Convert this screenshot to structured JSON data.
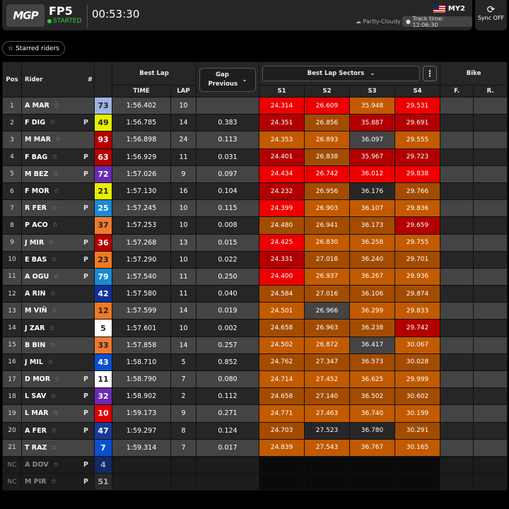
{
  "header": {
    "logo": "MGP",
    "session": "FP5",
    "status": "STARTED",
    "clock": "00:53:30",
    "circuit": "MY2",
    "weather": "Partly-Cloudy",
    "track_time": "Track time: 12:06:30",
    "sync": "Sync OFF"
  },
  "filters": {
    "starred": "Starred riders"
  },
  "table": {
    "headers": {
      "pos": "Pos",
      "rider": "Rider",
      "num": "#",
      "best_lap": "Best Lap",
      "time": "TIME",
      "lap": "LAP",
      "gap": "Gap Previous",
      "sectors": "Best Lap Sectors",
      "s1": "S1",
      "s2": "S2",
      "s3": "S3",
      "s4": "S4",
      "bike": "Bike",
      "front": "F.",
      "rear": "R."
    },
    "colors": {
      "red_odd": "#ee0000",
      "red_even": "#b20000",
      "orange_odd": "#c25a00",
      "orange_even": "#a34c00",
      "none_odd": "#444444",
      "none_even": "#262626"
    },
    "rows": [
      {
        "pos": "1",
        "rider": "A MAR",
        "p": "",
        "num": "73",
        "num_bg": "#9db4e6",
        "num_fg": "#222",
        "time": "1:56.402",
        "lap": "10",
        "gap": "",
        "s": [
          "24.314",
          "26.609",
          "35.948",
          "29.531"
        ],
        "c": [
          "red",
          "red",
          "orange",
          "red"
        ]
      },
      {
        "pos": "2",
        "rider": "F DIG",
        "p": "P",
        "num": "49",
        "num_bg": "#e6f000",
        "num_fg": "#222",
        "time": "1:56.785",
        "lap": "14",
        "gap": "0.383",
        "s": [
          "24.351",
          "26.856",
          "35.887",
          "29.691"
        ],
        "c": [
          "red",
          "orange",
          "red",
          "red"
        ]
      },
      {
        "pos": "3",
        "rider": "M MAR",
        "p": "",
        "num": "93",
        "num_bg": "#b50000",
        "num_fg": "#fff",
        "time": "1:56.898",
        "lap": "24",
        "gap": "0.113",
        "s": [
          "24.353",
          "26.893",
          "36.097",
          "29.555"
        ],
        "c": [
          "orange",
          "orange",
          "none",
          "orange"
        ]
      },
      {
        "pos": "4",
        "rider": "F BAG",
        "p": "P",
        "num": "63",
        "num_bg": "#b50000",
        "num_fg": "#fff",
        "time": "1:56.929",
        "lap": "11",
        "gap": "0.031",
        "s": [
          "24.401",
          "26.838",
          "35.967",
          "29.723"
        ],
        "c": [
          "red",
          "orange",
          "red",
          "red"
        ]
      },
      {
        "pos": "5",
        "rider": "M BEZ",
        "p": "P",
        "num": "72",
        "num_bg": "#6a2ab2",
        "num_fg": "#fff",
        "time": "1:57.026",
        "lap": "9",
        "gap": "0.097",
        "s": [
          "24.434",
          "26.742",
          "36.012",
          "29.838"
        ],
        "c": [
          "red",
          "red",
          "red",
          "red"
        ]
      },
      {
        "pos": "6",
        "rider": "F MOR",
        "p": "",
        "num": "21",
        "num_bg": "#e6f000",
        "num_fg": "#222",
        "time": "1:57.130",
        "lap": "16",
        "gap": "0.104",
        "s": [
          "24.232",
          "26.956",
          "36.176",
          "29.766"
        ],
        "c": [
          "red",
          "orange",
          "none",
          "orange"
        ]
      },
      {
        "pos": "7",
        "rider": "R FER",
        "p": "P",
        "num": "25",
        "num_bg": "#1a8ad6",
        "num_fg": "#fff",
        "time": "1:57.245",
        "lap": "10",
        "gap": "0.115",
        "s": [
          "24.399",
          "26.903",
          "36.107",
          "29.836"
        ],
        "c": [
          "red",
          "orange",
          "orange",
          "orange"
        ]
      },
      {
        "pos": "8",
        "rider": "P ACO",
        "p": "",
        "num": "37",
        "num_bg": "#f07a30",
        "num_fg": "#222",
        "time": "1:57.253",
        "lap": "10",
        "gap": "0.008",
        "s": [
          "24.480",
          "26.941",
          "36.173",
          "29.659"
        ],
        "c": [
          "orange",
          "orange",
          "orange",
          "red"
        ]
      },
      {
        "pos": "9",
        "rider": "J MIR",
        "p": "P",
        "num": "36",
        "num_bg": "#b50000",
        "num_fg": "#fff",
        "time": "1:57.268",
        "lap": "13",
        "gap": "0.015",
        "s": [
          "24.425",
          "26.830",
          "36.258",
          "29.755"
        ],
        "c": [
          "red",
          "orange",
          "orange",
          "orange"
        ]
      },
      {
        "pos": "10",
        "rider": "E BAS",
        "p": "P",
        "num": "23",
        "num_bg": "#f07a20",
        "num_fg": "#222",
        "time": "1:57.290",
        "lap": "10",
        "gap": "0.022",
        "s": [
          "24.331",
          "27.018",
          "36.240",
          "29.701"
        ],
        "c": [
          "red",
          "orange",
          "orange",
          "orange"
        ]
      },
      {
        "pos": "11",
        "rider": "A OGU",
        "p": "P",
        "num": "79",
        "num_bg": "#1a8ad6",
        "num_fg": "#fff",
        "time": "1:57.540",
        "lap": "11",
        "gap": "0.250",
        "s": [
          "24.400",
          "26.937",
          "36.267",
          "29.936"
        ],
        "c": [
          "red",
          "orange",
          "orange",
          "orange"
        ]
      },
      {
        "pos": "12",
        "rider": "A RIN",
        "p": "",
        "num": "42",
        "num_bg": "#10309a",
        "num_fg": "#fff",
        "time": "1:57.580",
        "lap": "11",
        "gap": "0.040",
        "s": [
          "24.584",
          "27.016",
          "36.106",
          "29.874"
        ],
        "c": [
          "orange",
          "orange",
          "orange",
          "orange"
        ]
      },
      {
        "pos": "13",
        "rider": "M VIÑ",
        "p": "",
        "num": "12",
        "num_bg": "#f07a20",
        "num_fg": "#222",
        "time": "1:57.599",
        "lap": "14",
        "gap": "0.019",
        "s": [
          "24.501",
          "26.966",
          "36.299",
          "29.833"
        ],
        "c": [
          "orange",
          "none",
          "orange",
          "orange"
        ]
      },
      {
        "pos": "14",
        "rider": "J ZAR",
        "p": "",
        "num": "5",
        "num_bg": "#ffffff",
        "num_fg": "#222",
        "time": "1:57.601",
        "lap": "10",
        "gap": "0.002",
        "s": [
          "24.658",
          "26.963",
          "36.238",
          "29.742"
        ],
        "c": [
          "orange",
          "orange",
          "orange",
          "red"
        ]
      },
      {
        "pos": "15",
        "rider": "B BIN",
        "p": "",
        "num": "33",
        "num_bg": "#f07a30",
        "num_fg": "#222",
        "time": "1:57.858",
        "lap": "14",
        "gap": "0.257",
        "s": [
          "24.502",
          "26.872",
          "36.417",
          "30.067"
        ],
        "c": [
          "orange",
          "orange",
          "none",
          "orange"
        ]
      },
      {
        "pos": "16",
        "rider": "J MIL",
        "p": "",
        "num": "43",
        "num_bg": "#0a50d0",
        "num_fg": "#fff",
        "time": "1:58.710",
        "lap": "5",
        "gap": "0.852",
        "s": [
          "24.762",
          "27.347",
          "36.573",
          "30.028"
        ],
        "c": [
          "orange",
          "orange",
          "orange",
          "orange"
        ]
      },
      {
        "pos": "17",
        "rider": "D MOR",
        "p": "P",
        "num": "11",
        "num_bg": "#ffffff",
        "num_fg": "#222",
        "time": "1:58.790",
        "lap": "7",
        "gap": "0.080",
        "s": [
          "24.714",
          "27.452",
          "36.625",
          "29.999"
        ],
        "c": [
          "orange",
          "orange",
          "orange",
          "orange"
        ]
      },
      {
        "pos": "18",
        "rider": "L SAV",
        "p": "P",
        "num": "32",
        "num_bg": "#6a2ab2",
        "num_fg": "#fff",
        "time": "1:58.902",
        "lap": "2",
        "gap": "0.112",
        "s": [
          "24.658",
          "27.140",
          "36.502",
          "30.602"
        ],
        "c": [
          "orange",
          "orange",
          "orange",
          "orange"
        ]
      },
      {
        "pos": "19",
        "rider": "L MAR",
        "p": "P",
        "num": "10",
        "num_bg": "#e00000",
        "num_fg": "#fff",
        "time": "1:59.173",
        "lap": "9",
        "gap": "0.271",
        "s": [
          "24.771",
          "27.463",
          "36.740",
          "30.199"
        ],
        "c": [
          "orange",
          "orange",
          "orange",
          "orange"
        ]
      },
      {
        "pos": "20",
        "rider": "A FER",
        "p": "P",
        "num": "47",
        "num_bg": "#1a3a9a",
        "num_fg": "#fff",
        "time": "1:59.297",
        "lap": "8",
        "gap": "0.124",
        "s": [
          "24.703",
          "27.523",
          "36.780",
          "30.291"
        ],
        "c": [
          "orange",
          "none",
          "none",
          "orange"
        ]
      },
      {
        "pos": "21",
        "rider": "T RAZ",
        "p": "",
        "num": "7",
        "num_bg": "#0a50d0",
        "num_fg": "#fff",
        "time": "1:59.314",
        "lap": "7",
        "gap": "0.017",
        "s": [
          "24.839",
          "27.543",
          "36.767",
          "30.165"
        ],
        "c": [
          "orange",
          "orange",
          "orange",
          "orange"
        ]
      },
      {
        "pos": "NC",
        "rider": "A DOV",
        "p": "P",
        "num": "4",
        "num_bg": "#102a6a",
        "num_fg": "#aaa",
        "time": "",
        "lap": "",
        "gap": "",
        "s": [
          "",
          "",
          "",
          ""
        ],
        "c": [
          "nc",
          "nc",
          "nc",
          "nc"
        ]
      },
      {
        "pos": "NC",
        "rider": "M PIR",
        "p": "P",
        "num": "51",
        "num_bg": "#2a2a2a",
        "num_fg": "#aaa",
        "time": "",
        "lap": "",
        "gap": "",
        "s": [
          "",
          "",
          "",
          ""
        ],
        "c": [
          "nc",
          "nc",
          "nc",
          "nc"
        ]
      }
    ]
  }
}
